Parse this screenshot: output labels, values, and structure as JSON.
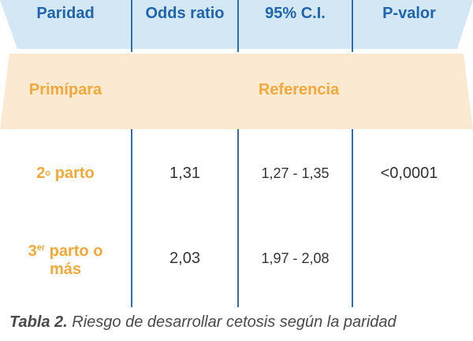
{
  "colors": {
    "header_band": "#d3e8f4",
    "reference_band": "#fbe9d2",
    "header_text": "#1f65ad",
    "row_label_text": "#f2a93b",
    "divider": "#2e6fb0",
    "value_text": "#333333"
  },
  "table": {
    "headers": [
      "Paridad",
      "Odds ratio",
      "95% C.I.",
      "P-valor"
    ],
    "reference_row": {
      "label": "Primípara",
      "value": "Referencia"
    },
    "rows": [
      {
        "label_main": "2",
        "label_sup": "o",
        "label_rest": " parto",
        "label_line2": "",
        "odds_ratio": "1,31",
        "ci": "1,27 - 1,35",
        "p_value": "<0,0001"
      },
      {
        "label_main": "3",
        "label_sup": "er",
        "label_rest": " parto o",
        "label_line2": "más",
        "odds_ratio": "2,03",
        "ci": "1,97 - 2,08",
        "p_value": ""
      }
    ]
  },
  "caption": {
    "bold": "Tabla 2.",
    "text": " Riesgo de desarrollar cetosis según la paridad"
  }
}
